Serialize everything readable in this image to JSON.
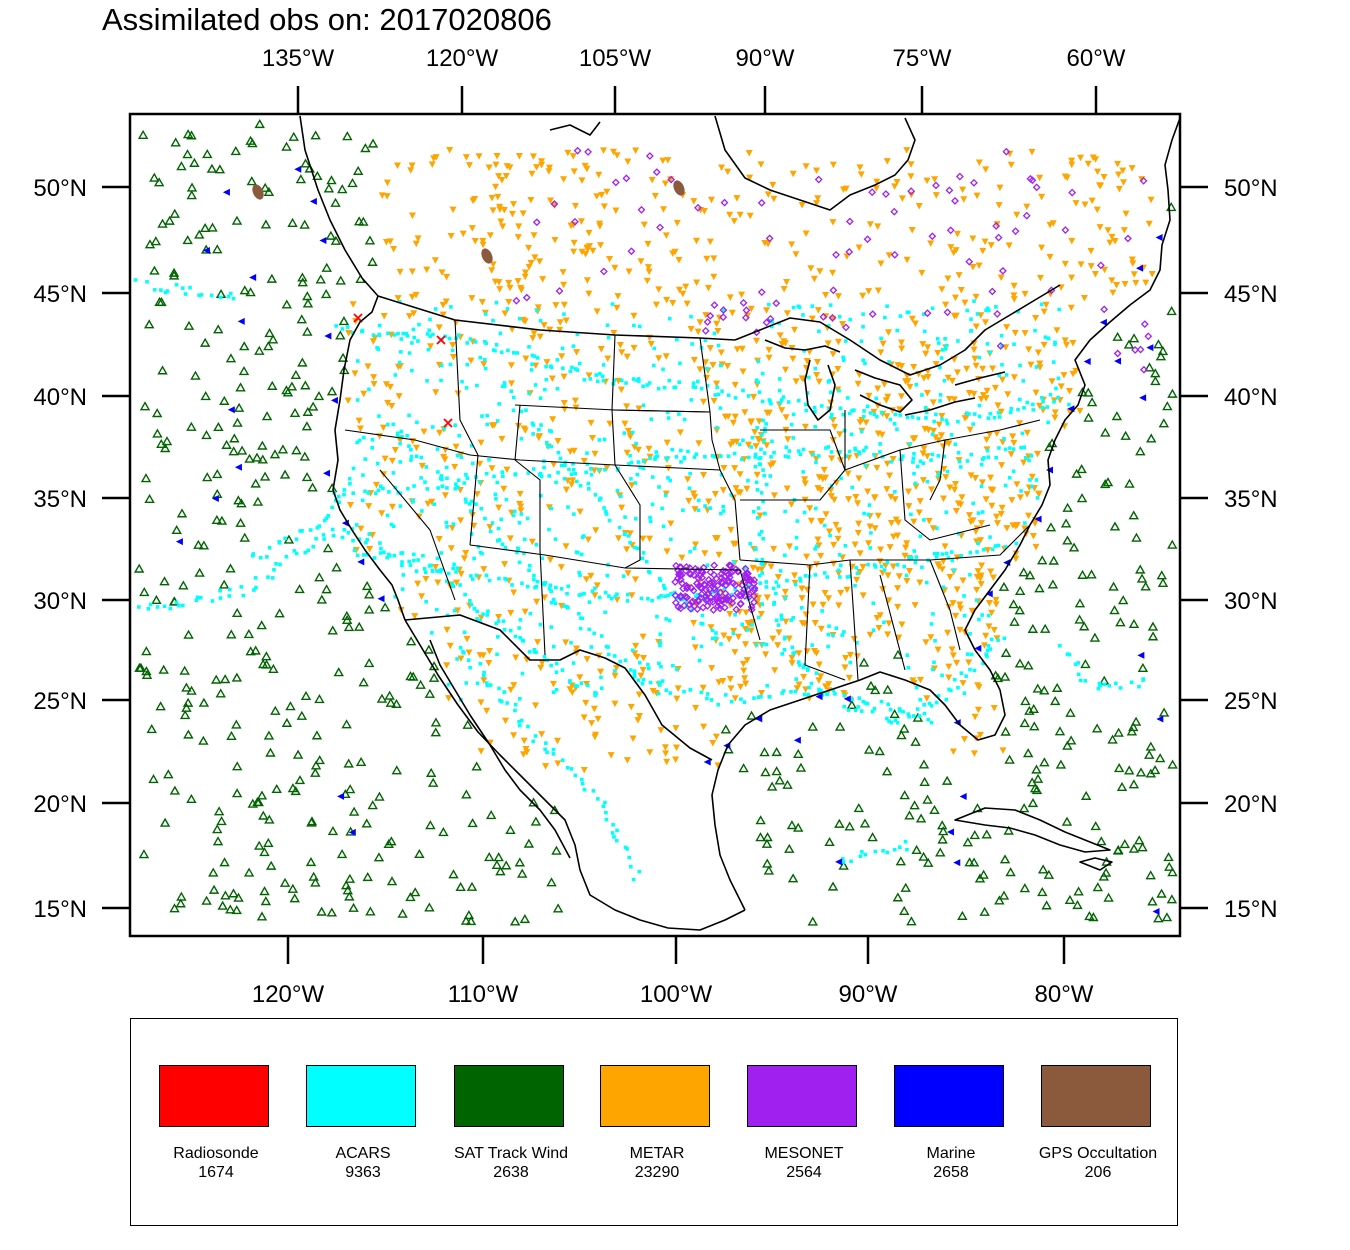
{
  "title": "Assimilated obs on: 2017020806",
  "map": {
    "top_lon_labels": [
      "135°W",
      "120°W",
      "105°W",
      "90°W",
      "75°W",
      "60°W"
    ],
    "bottom_lon_labels": [
      "120°W",
      "110°W",
      "100°W",
      "90°W",
      "80°W"
    ],
    "lat_labels": [
      "50°N",
      "45°N",
      "40°N",
      "35°N",
      "30°N",
      "25°N",
      "20°N",
      "15°N"
    ],
    "colors": {
      "coastline": "#000000",
      "frame": "#000000"
    }
  },
  "legend": {
    "items": [
      {
        "name": "Radiosonde",
        "count": "1674",
        "color": "#ff0000",
        "marker": "x"
      },
      {
        "name": "ACARS",
        "count": "9363",
        "color": "#00ffff",
        "marker": "square"
      },
      {
        "name": "SAT Track Wind",
        "count": "2638",
        "color": "#006400",
        "marker": "triangle-up"
      },
      {
        "name": "METAR",
        "count": "23290",
        "color": "#ffa500",
        "marker": "triangle-down"
      },
      {
        "name": "MESONET",
        "count": "2564",
        "color": "#a020f0",
        "marker": "diamond"
      },
      {
        "name": "Marine",
        "count": "2658",
        "color": "#0000ff",
        "marker": "triangle-left"
      },
      {
        "name": "GPS Occultation",
        "count": "206",
        "color": "#8b5a3c",
        "marker": "blob"
      }
    ]
  }
}
